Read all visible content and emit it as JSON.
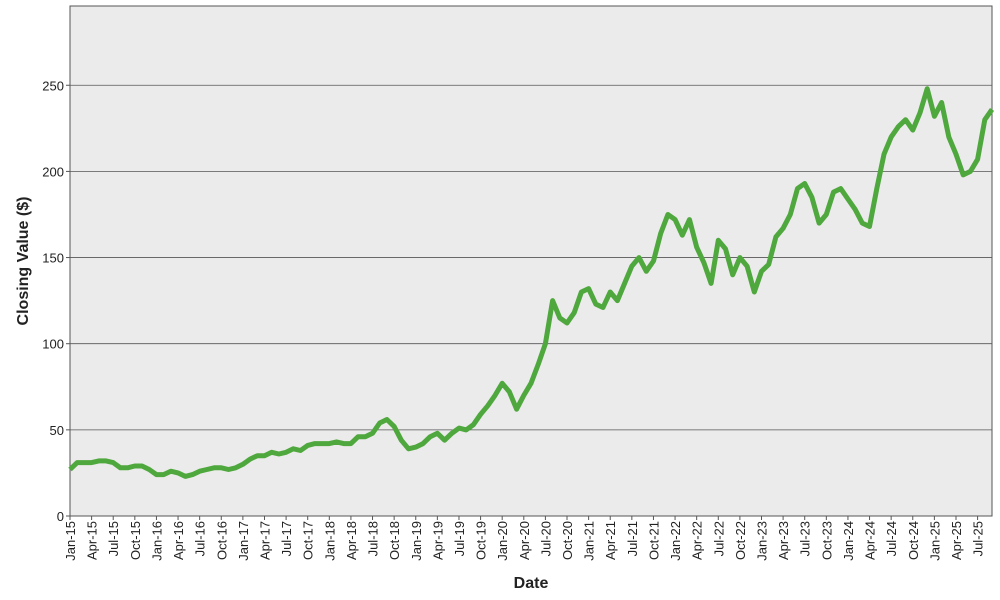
{
  "chart_data": {
    "type": "line",
    "x_label": "Date",
    "y_label": "Closing Value ($)",
    "color": "#4fa83d",
    "grid": true,
    "xlim": [
      "2015-01",
      "2025-09"
    ],
    "ylim": [
      0,
      296
    ],
    "yticks": [
      0,
      50,
      100,
      150,
      200,
      250
    ],
    "xticks": [
      {
        "value": "2015-01",
        "label": "Jan-15"
      },
      {
        "value": "2015-04",
        "label": "Apr-15"
      },
      {
        "value": "2015-07",
        "label": "Jul-15"
      },
      {
        "value": "2015-10",
        "label": "Oct-15"
      },
      {
        "value": "2016-01",
        "label": "Jan-16"
      },
      {
        "value": "2016-04",
        "label": "Apr-16"
      },
      {
        "value": "2016-07",
        "label": "Jul-16"
      },
      {
        "value": "2016-10",
        "label": "Oct-16"
      },
      {
        "value": "2017-01",
        "label": "Jan-17"
      },
      {
        "value": "2017-04",
        "label": "Apr-17"
      },
      {
        "value": "2017-07",
        "label": "Jul-17"
      },
      {
        "value": "2017-10",
        "label": "Oct-17"
      },
      {
        "value": "2018-01",
        "label": "Jan-18"
      },
      {
        "value": "2018-04",
        "label": "Apr-18"
      },
      {
        "value": "2018-07",
        "label": "Jul-18"
      },
      {
        "value": "2018-10",
        "label": "Oct-18"
      },
      {
        "value": "2019-01",
        "label": "Jan-19"
      },
      {
        "value": "2019-04",
        "label": "Apr-19"
      },
      {
        "value": "2019-07",
        "label": "Jul-19"
      },
      {
        "value": "2019-10",
        "label": "Oct-19"
      },
      {
        "value": "2020-01",
        "label": "Jan-20"
      },
      {
        "value": "2020-04",
        "label": "Apr-20"
      },
      {
        "value": "2020-07",
        "label": "Jul-20"
      },
      {
        "value": "2020-10",
        "label": "Oct-20"
      },
      {
        "value": "2021-01",
        "label": "Jan-21"
      },
      {
        "value": "2021-04",
        "label": "Apr-21"
      },
      {
        "value": "2021-07",
        "label": "Jul-21"
      },
      {
        "value": "2021-10",
        "label": "Oct-21"
      },
      {
        "value": "2022-01",
        "label": "Jan-22"
      },
      {
        "value": "2022-04",
        "label": "Apr-22"
      },
      {
        "value": "2022-07",
        "label": "Jul-22"
      },
      {
        "value": "2022-10",
        "label": "Oct-22"
      },
      {
        "value": "2023-01",
        "label": "Jan-23"
      },
      {
        "value": "2023-04",
        "label": "Apr-23"
      },
      {
        "value": "2023-07",
        "label": "Jul-23"
      },
      {
        "value": "2023-10",
        "label": "Oct-23"
      },
      {
        "value": "2024-01",
        "label": "Jan-24"
      },
      {
        "value": "2024-04",
        "label": "Apr-24"
      },
      {
        "value": "2024-07",
        "label": "Jul-24"
      },
      {
        "value": "2024-10",
        "label": "Oct-24"
      },
      {
        "value": "2025-01",
        "label": "Jan-25"
      },
      {
        "value": "2025-04",
        "label": "Apr-25"
      },
      {
        "value": "2025-07",
        "label": "Jul-25"
      }
    ],
    "x": [
      "2015-01",
      "2015-02",
      "2015-03",
      "2015-04",
      "2015-05",
      "2015-06",
      "2015-07",
      "2015-08",
      "2015-09",
      "2015-10",
      "2015-11",
      "2015-12",
      "2016-01",
      "2016-02",
      "2016-03",
      "2016-04",
      "2016-05",
      "2016-06",
      "2016-07",
      "2016-08",
      "2016-09",
      "2016-10",
      "2016-11",
      "2016-12",
      "2017-01",
      "2017-02",
      "2017-03",
      "2017-04",
      "2017-05",
      "2017-06",
      "2017-07",
      "2017-08",
      "2017-09",
      "2017-10",
      "2017-11",
      "2017-12",
      "2018-01",
      "2018-02",
      "2018-03",
      "2018-04",
      "2018-05",
      "2018-06",
      "2018-07",
      "2018-08",
      "2018-09",
      "2018-10",
      "2018-11",
      "2018-12",
      "2019-01",
      "2019-02",
      "2019-03",
      "2019-04",
      "2019-05",
      "2019-06",
      "2019-07",
      "2019-08",
      "2019-09",
      "2019-10",
      "2019-11",
      "2019-12",
      "2020-01",
      "2020-02",
      "2020-03",
      "2020-04",
      "2020-05",
      "2020-06",
      "2020-07",
      "2020-08",
      "2020-09",
      "2020-10",
      "2020-11",
      "2020-12",
      "2021-01",
      "2021-02",
      "2021-03",
      "2021-04",
      "2021-05",
      "2021-06",
      "2021-07",
      "2021-08",
      "2021-09",
      "2021-10",
      "2021-11",
      "2021-12",
      "2022-01",
      "2022-02",
      "2022-03",
      "2022-04",
      "2022-05",
      "2022-06",
      "2022-07",
      "2022-08",
      "2022-09",
      "2022-10",
      "2022-11",
      "2022-12",
      "2023-01",
      "2023-02",
      "2023-03",
      "2023-04",
      "2023-05",
      "2023-06",
      "2023-07",
      "2023-08",
      "2023-09",
      "2023-10",
      "2023-11",
      "2023-12",
      "2024-01",
      "2024-02",
      "2024-03",
      "2024-04",
      "2024-05",
      "2024-06",
      "2024-07",
      "2024-08",
      "2024-09",
      "2024-10",
      "2024-11",
      "2024-12",
      "2025-01",
      "2025-02",
      "2025-03",
      "2025-04",
      "2025-05",
      "2025-06",
      "2025-07",
      "2025-08",
      "2025-09"
    ],
    "values": [
      27,
      31,
      31,
      31,
      32,
      32,
      31,
      28,
      28,
      29,
      29,
      27,
      24,
      24,
      26,
      25,
      23,
      24,
      26,
      27,
      28,
      28,
      27,
      28,
      30,
      33,
      35,
      35,
      37,
      36,
      37,
      39,
      38,
      41,
      42,
      42,
      42,
      43,
      42,
      42,
      46,
      46,
      48,
      54,
      56,
      52,
      44,
      39,
      40,
      42,
      46,
      48,
      44,
      48,
      51,
      50,
      53,
      59,
      64,
      70,
      77,
      72,
      62,
      70,
      77,
      88,
      100,
      125,
      115,
      112,
      118,
      130,
      132,
      123,
      121,
      130,
      125,
      135,
      145,
      150,
      142,
      148,
      164,
      175,
      172,
      163,
      172,
      156,
      147,
      135,
      160,
      155,
      140,
      150,
      145,
      130,
      142,
      146,
      162,
      167,
      175,
      190,
      193,
      185,
      170,
      175,
      188,
      190,
      184,
      178,
      170,
      168,
      190,
      210,
      220,
      226,
      230,
      224,
      234,
      248,
      232,
      240,
      220,
      210,
      198,
      200,
      207,
      230,
      236
    ]
  }
}
